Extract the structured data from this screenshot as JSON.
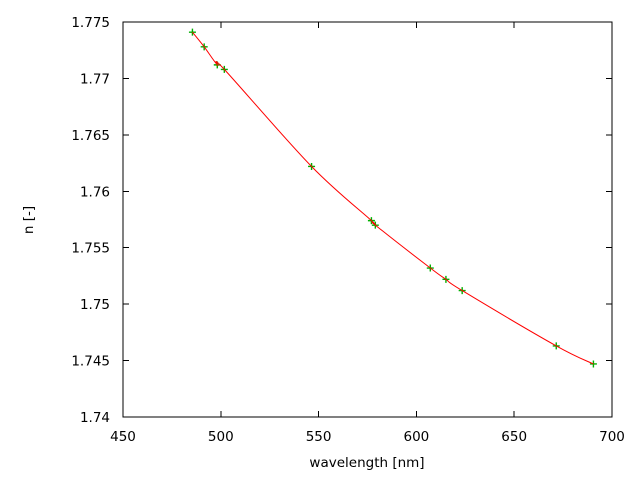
{
  "window": {
    "background_color": "#ffffff"
  },
  "chart_data": {
    "type": "line",
    "title": "",
    "xlabel": "wavelength [nm]",
    "ylabel": "n [-]",
    "xlim": [
      450,
      700
    ],
    "ylim": [
      1.74,
      1.775
    ],
    "xticks": [
      450,
      500,
      550,
      600,
      650,
      700
    ],
    "xtick_labels": [
      "450",
      "500",
      "550",
      "600",
      "650",
      "700"
    ],
    "yticks": [
      1.74,
      1.745,
      1.75,
      1.755,
      1.76,
      1.765,
      1.77,
      1.775
    ],
    "ytick_labels": [
      "1.74",
      "1.745",
      "1.75",
      "1.755",
      "1.76",
      "1.765",
      "1.77",
      "1.775"
    ],
    "grid": false,
    "legend_position": "none",
    "axis_color": "#000000",
    "text_color": "#000000",
    "series": [
      {
        "name": "measured points",
        "type": "scatter",
        "marker": "plus",
        "color": "#00b000",
        "x": [
          485.5,
          491.5,
          498.2,
          501.8,
          546.4,
          577.0,
          579.0,
          607.1,
          615.1,
          623.4,
          671.5,
          690.5
        ],
        "y": [
          1.7741,
          1.7728,
          1.7712,
          1.7708,
          1.7622,
          1.7574,
          1.757,
          1.7532,
          1.7522,
          1.7512,
          1.7463,
          1.7447
        ]
      },
      {
        "name": "dispersion fit curve",
        "type": "line",
        "color": "#ff0000",
        "x": [
          485.5,
          491.5,
          498.2,
          501.8,
          546.4,
          577.0,
          579.0,
          607.1,
          615.1,
          623.4,
          671.5,
          690.5
        ],
        "y": [
          1.7741,
          1.7728,
          1.7712,
          1.7708,
          1.7622,
          1.7574,
          1.757,
          1.7532,
          1.7522,
          1.7512,
          1.7463,
          1.7447
        ]
      }
    ]
  }
}
